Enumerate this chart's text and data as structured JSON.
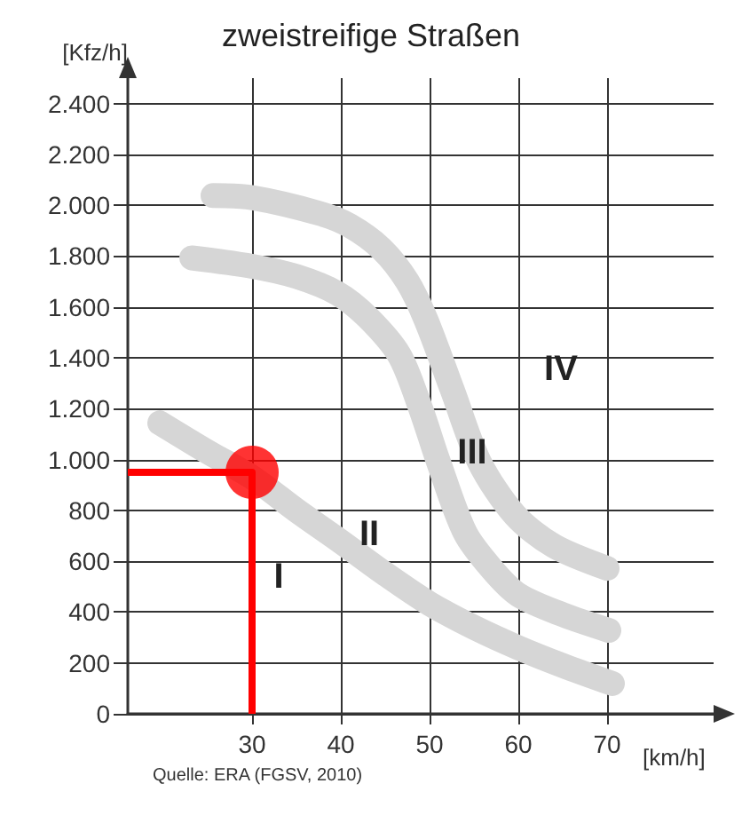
{
  "chart_data": {
    "type": "line",
    "title": "zweistreifige Straßen",
    "xlabel": "[km/h]",
    "ylabel": "[Kfz/h]",
    "xlim": [
      16,
      82
    ],
    "xticks": [
      30,
      40,
      50,
      60,
      70
    ],
    "ylim": [
      0,
      2500
    ],
    "yticks": [
      0,
      200,
      400,
      600,
      800,
      {
        "value": 1000,
        "label": "1.000"
      },
      {
        "value": 1200,
        "label": "1.200"
      },
      {
        "value": 1400,
        "label": "1.400"
      },
      {
        "value": 1600,
        "label": "1.600"
      },
      {
        "value": 1800,
        "label": "1.800"
      },
      {
        "value": 2000,
        "label": "2.000"
      },
      {
        "value": 2200,
        "label": "2.200"
      },
      {
        "value": 2400,
        "label": "2.400"
      }
    ],
    "grid": true,
    "series": [
      {
        "color": "#d6d6d6",
        "x": [
          19.6,
          25,
          30,
          35,
          40,
          45,
          50,
          55,
          60,
          65,
          70.6
        ],
        "values": [
          1144,
          1030,
          930,
          800,
          677,
          550,
          433,
          340,
          260,
          190,
          119
        ]
      },
      {
        "color": "#d6d6d6",
        "x": [
          23.2,
          30,
          35,
          39.6,
          43,
          46.6,
          49,
          51,
          54,
          57,
          60,
          65,
          70.2
        ],
        "values": [
          1793,
          1760,
          1720,
          1654,
          1560,
          1410,
          1200,
          991,
          712,
          570,
          468,
          390,
          328
        ]
      },
      {
        "color": "#d6d6d6",
        "x": [
          25.6,
          30,
          37.6,
          41,
          44.6,
          47.5,
          49.6,
          52.6,
          55.6,
          59.6,
          64,
          70
        ],
        "values": [
          2038,
          2030,
          1968,
          1920,
          1828,
          1700,
          1549,
          1270,
          991,
          782,
          660,
          572
        ]
      },
      {
        "type": "step",
        "color": "#ff0000",
        "x": [
          16,
          30
        ],
        "values": [
          950,
          0
        ]
      },
      {
        "type": "scatter",
        "color": "#ff0000",
        "marker": "circle",
        "x": [
          30
        ],
        "values": [
          950
        ]
      }
    ],
    "annotations": [
      "I",
      "II",
      "III",
      "IV",
      "Quelle: ERA (FGSV, 2010)"
    ]
  }
}
